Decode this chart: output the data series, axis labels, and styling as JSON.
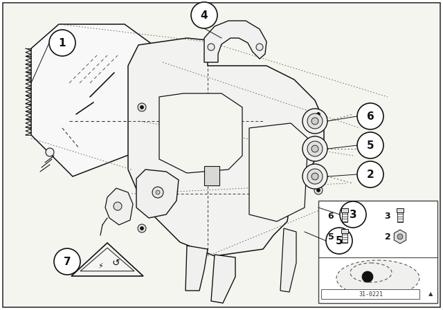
{
  "bg": "#ffffff",
  "fg": "#111111",
  "diagram_bg": "#f5f5f0",
  "lw_main": 1.0,
  "lw_thin": 0.6,
  "lw_thick": 1.3,
  "part_circle_r": 0.032,
  "diagram_number": "31-0221"
}
